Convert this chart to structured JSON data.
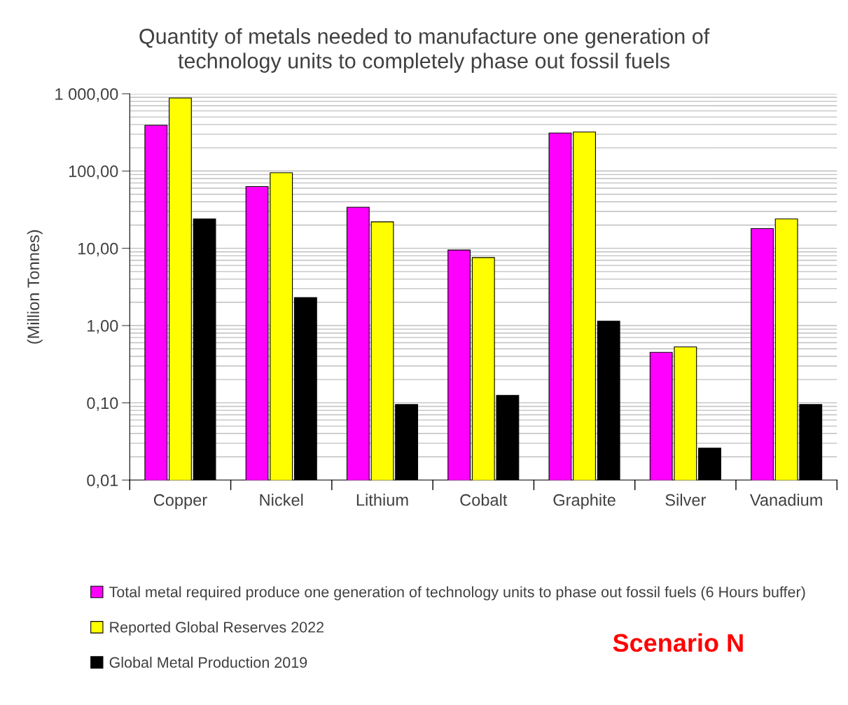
{
  "chart_data": {
    "type": "bar",
    "title": "Quantity of metals needed to manufacture one generation of\ntechnology units to completely phase out fossil fuels",
    "ylabel": "(Million Tonnes)",
    "categories": [
      "Copper",
      "Nickel",
      "Lithium",
      "Cobalt",
      "Graphite",
      "Silver",
      "Vanadium"
    ],
    "series": [
      {
        "name": "Total metal required produce one generation of technology units to phase out fossil fuels (6 Hours buffer)",
        "color": "#ff00ff",
        "values": [
          390,
          63,
          34,
          9.5,
          310,
          0.45,
          18
        ]
      },
      {
        "name": "Reported Global Reserves 2022",
        "color": "#ffff00",
        "values": [
          880,
          95,
          22,
          7.6,
          320,
          0.53,
          24
        ]
      },
      {
        "name": "Global Metal Production 2019",
        "color": "#000000",
        "values": [
          24,
          2.3,
          0.095,
          0.125,
          1.14,
          0.026,
          0.095
        ]
      }
    ],
    "log": "y",
    "ylim": [
      0.01,
      1000
    ],
    "yticks": [
      {
        "value": 0.01,
        "label": "0,01"
      },
      {
        "value": 0.1,
        "label": "0,10"
      },
      {
        "value": 1,
        "label": "1,00"
      },
      {
        "value": 10,
        "label": "10,00"
      },
      {
        "value": 100,
        "label": "100,00"
      },
      {
        "value": 1000,
        "label": "1 000,00"
      }
    ],
    "grid": "y",
    "legend": "bottom",
    "annotations": [
      "Scenario N"
    ]
  }
}
